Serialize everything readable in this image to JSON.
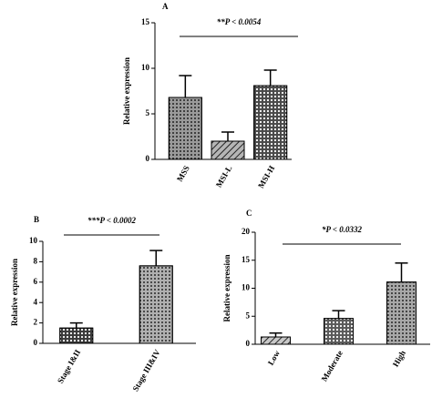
{
  "chart_data": [
    {
      "type": "bar",
      "panel": "A",
      "ylabel": "Relative expression",
      "annotation": "**P < 0.0054",
      "categories": [
        "MSS",
        "MSI-L",
        "MSI-H"
      ],
      "values": [
        6.8,
        2.0,
        8.1
      ],
      "errors": [
        2.4,
        1.0,
        1.7
      ],
      "colors": [
        "#9a9a9a",
        "#b5b5b5",
        "#4a4a4a"
      ],
      "ylim": [
        0,
        15
      ],
      "yticks": [
        0,
        5,
        10,
        15
      ]
    },
    {
      "type": "bar",
      "panel": "B",
      "ylabel": "Relative expression",
      "annotation": "***P < 0.0002",
      "categories": [
        "Stage I&II",
        "Stage III&IV"
      ],
      "values": [
        1.5,
        7.6
      ],
      "errors": [
        0.5,
        1.5
      ],
      "colors": [
        "#3a3a3a",
        "#b0b0b0"
      ],
      "ylim": [
        0,
        10
      ],
      "yticks": [
        0,
        2,
        4,
        6,
        8,
        10
      ]
    },
    {
      "type": "bar",
      "panel": "C",
      "ylabel": "Relative expression",
      "annotation": "*P < 0.0332",
      "categories": [
        "Low",
        "Moderate",
        "High"
      ],
      "values": [
        1.3,
        4.6,
        11.1
      ],
      "errors": [
        0.7,
        1.4,
        3.4
      ],
      "colors": [
        "#c8c8c8",
        "#5a5a5a",
        "#a8a8a8"
      ],
      "ylim": [
        0,
        20
      ],
      "yticks": [
        0,
        5,
        10,
        15,
        20
      ]
    }
  ]
}
